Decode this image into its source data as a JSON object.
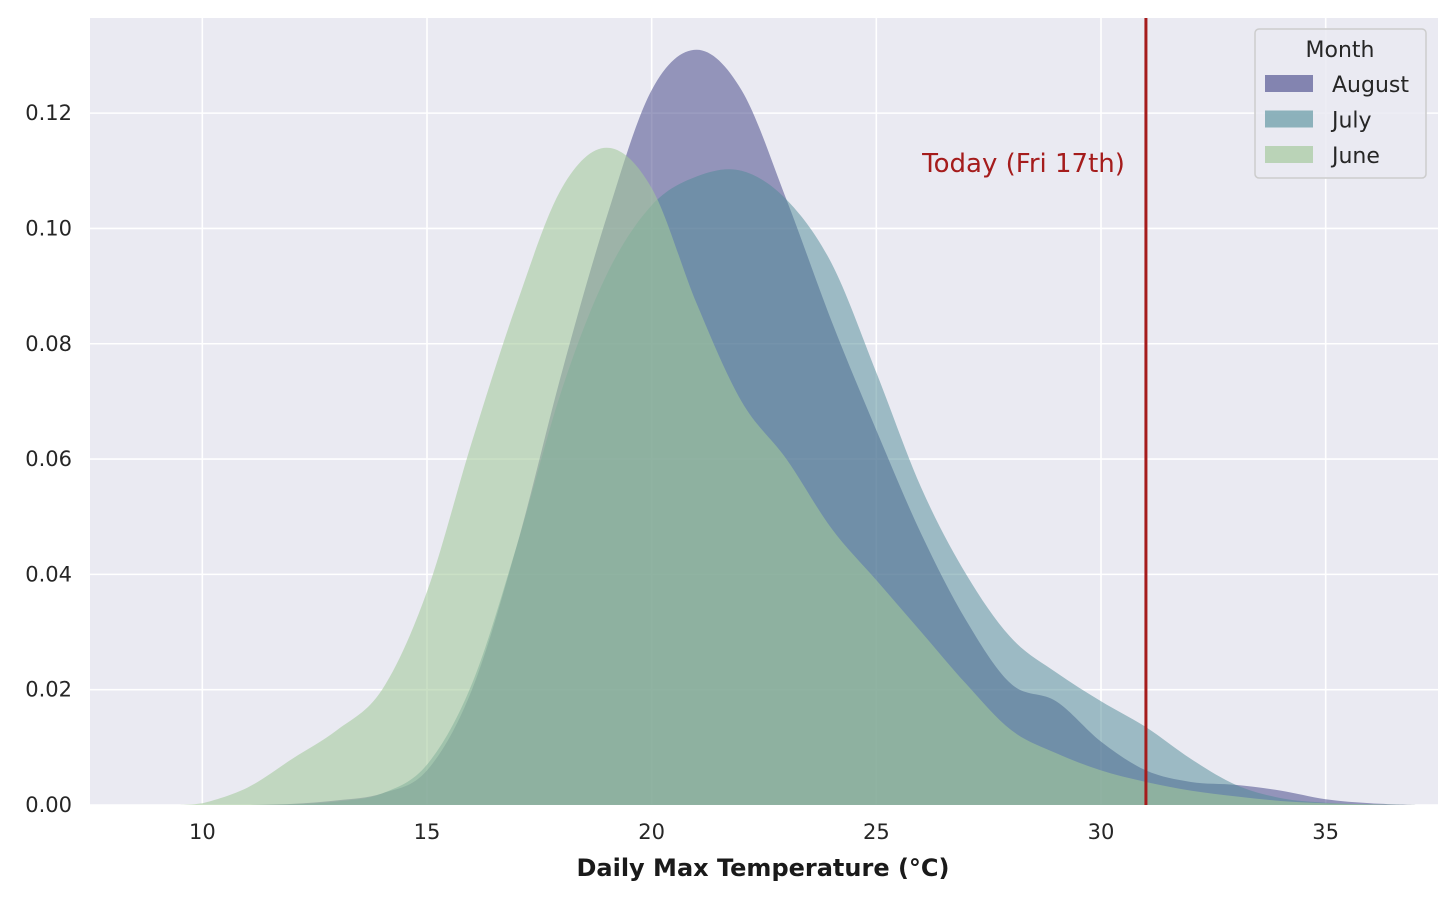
{
  "chart_data": {
    "type": "area",
    "title": "",
    "xlabel": "Daily Max Temperature (°C)",
    "ylabel": "",
    "xlim": [
      7.5,
      37.5
    ],
    "ylim": [
      0,
      0.1365
    ],
    "xticks": [
      "10",
      "15",
      "20",
      "25",
      "30",
      "35"
    ],
    "xtick_values": [
      10,
      15,
      20,
      25,
      30,
      35
    ],
    "yticks": [
      "0.00",
      "0.02",
      "0.04",
      "0.06",
      "0.08",
      "0.10",
      "0.12"
    ],
    "ytick_values": [
      0,
      0.02,
      0.04,
      0.06,
      0.08,
      0.1,
      0.12
    ],
    "grid": true,
    "legend": {
      "title": "Month",
      "position": "top-right"
    },
    "series": [
      {
        "name": "August",
        "color": "#4b4d8c",
        "opacity": 0.55,
        "points": [
          [
            11,
            0
          ],
          [
            12,
            0.0002
          ],
          [
            13,
            0.0008
          ],
          [
            14,
            0.002
          ],
          [
            15,
            0.006
          ],
          [
            16,
            0.02
          ],
          [
            17,
            0.045
          ],
          [
            18,
            0.075
          ],
          [
            19,
            0.102
          ],
          [
            20,
            0.124
          ],
          [
            21,
            0.131
          ],
          [
            22,
            0.124
          ],
          [
            23,
            0.105
          ],
          [
            24,
            0.084
          ],
          [
            25,
            0.065
          ],
          [
            26,
            0.047
          ],
          [
            27,
            0.032
          ],
          [
            28,
            0.021
          ],
          [
            29,
            0.018
          ],
          [
            30,
            0.011
          ],
          [
            31,
            0.006
          ],
          [
            32,
            0.004
          ],
          [
            33,
            0.0035
          ],
          [
            34,
            0.0025
          ],
          [
            35,
            0.001
          ],
          [
            36,
            0.0003
          ],
          [
            37,
            0
          ]
        ]
      },
      {
        "name": "July",
        "color": "#4d8a96",
        "opacity": 0.5,
        "points": [
          [
            11,
            0
          ],
          [
            12,
            0.0001
          ],
          [
            13,
            0.0006
          ],
          [
            14,
            0.002
          ],
          [
            15,
            0.007
          ],
          [
            16,
            0.021
          ],
          [
            17,
            0.045
          ],
          [
            18,
            0.072
          ],
          [
            19,
            0.092
          ],
          [
            20,
            0.104
          ],
          [
            21,
            0.109
          ],
          [
            22,
            0.11
          ],
          [
            23,
            0.105
          ],
          [
            24,
            0.094
          ],
          [
            25,
            0.075
          ],
          [
            26,
            0.055
          ],
          [
            27,
            0.04
          ],
          [
            28,
            0.029
          ],
          [
            29,
            0.023
          ],
          [
            30,
            0.018
          ],
          [
            31,
            0.0135
          ],
          [
            32,
            0.008
          ],
          [
            33,
            0.0035
          ],
          [
            34,
            0.0012
          ],
          [
            35,
            0.0004
          ],
          [
            36,
            0.0001
          ],
          [
            37,
            0
          ]
        ]
      },
      {
        "name": "June",
        "color": "#a3c99b",
        "opacity": 0.58,
        "points": [
          [
            9.5,
            0
          ],
          [
            10,
            0.0003
          ],
          [
            11,
            0.003
          ],
          [
            12,
            0.008
          ],
          [
            13,
            0.013
          ],
          [
            14,
            0.02
          ],
          [
            15,
            0.037
          ],
          [
            16,
            0.063
          ],
          [
            17,
            0.087
          ],
          [
            18,
            0.107
          ],
          [
            19,
            0.114
          ],
          [
            20,
            0.107
          ],
          [
            21,
            0.087
          ],
          [
            22,
            0.07
          ],
          [
            23,
            0.06
          ],
          [
            24,
            0.048
          ],
          [
            25,
            0.039
          ],
          [
            26,
            0.03
          ],
          [
            27,
            0.021
          ],
          [
            28,
            0.013
          ],
          [
            29,
            0.009
          ],
          [
            30,
            0.006
          ],
          [
            31,
            0.004
          ],
          [
            32,
            0.0025
          ],
          [
            33,
            0.0015
          ],
          [
            34,
            0.0007
          ],
          [
            35,
            0.0003
          ],
          [
            36,
            0.0001
          ],
          [
            37,
            0
          ]
        ]
      }
    ],
    "annotation": {
      "label": "Today (Fri 17th)",
      "x": 31,
      "color": "#a51c1c"
    }
  }
}
